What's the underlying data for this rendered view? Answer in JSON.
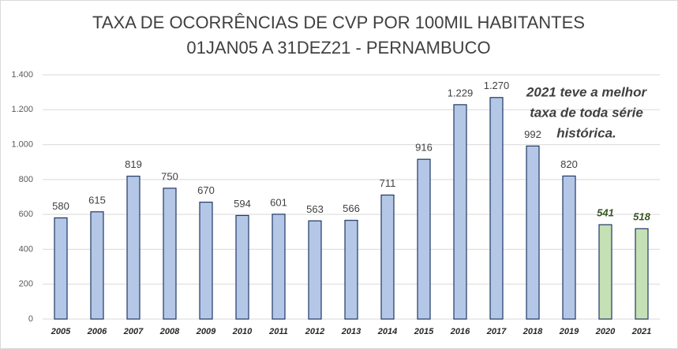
{
  "chart_data": {
    "type": "bar",
    "title": [
      "TAXA DE OCORRÊNCIAS DE CVP POR 100MIL HABITANTES",
      "01JAN05 A 31DEZ21 - PERNAMBUCO"
    ],
    "annotation": [
      "2021 teve a melhor",
      "taxa de toda série",
      "histórica."
    ],
    "categories": [
      "2005",
      "2006",
      "2007",
      "2008",
      "2009",
      "2010",
      "2011",
      "2012",
      "2013",
      "2014",
      "2015",
      "2016",
      "2017",
      "2018",
      "2019",
      "2020",
      "2021"
    ],
    "values": [
      580,
      615,
      819,
      750,
      670,
      594,
      601,
      563,
      566,
      711,
      916,
      1229,
      1270,
      992,
      820,
      541,
      518
    ],
    "value_labels": [
      "580",
      "615",
      "819",
      "750",
      "670",
      "594",
      "601",
      "563",
      "566",
      "711",
      "916",
      "1.229",
      "1.270",
      "992",
      "820",
      "541",
      "518"
    ],
    "colors": [
      "#b4c7e7",
      "#b4c7e7",
      "#b4c7e7",
      "#b4c7e7",
      "#b4c7e7",
      "#b4c7e7",
      "#b4c7e7",
      "#b4c7e7",
      "#b4c7e7",
      "#b4c7e7",
      "#b4c7e7",
      "#b4c7e7",
      "#b4c7e7",
      "#b4c7e7",
      "#b4c7e7",
      "#c5e0b4",
      "#c5e0b4"
    ],
    "ylim": [
      0,
      1400
    ],
    "yticks": [
      0,
      200,
      400,
      600,
      800,
      {
        "value": 1000,
        "label": "1.000"
      },
      {
        "value": 1200,
        "label": "1.200"
      },
      {
        "value": 1400,
        "label": "1.400"
      }
    ],
    "grid": true
  }
}
